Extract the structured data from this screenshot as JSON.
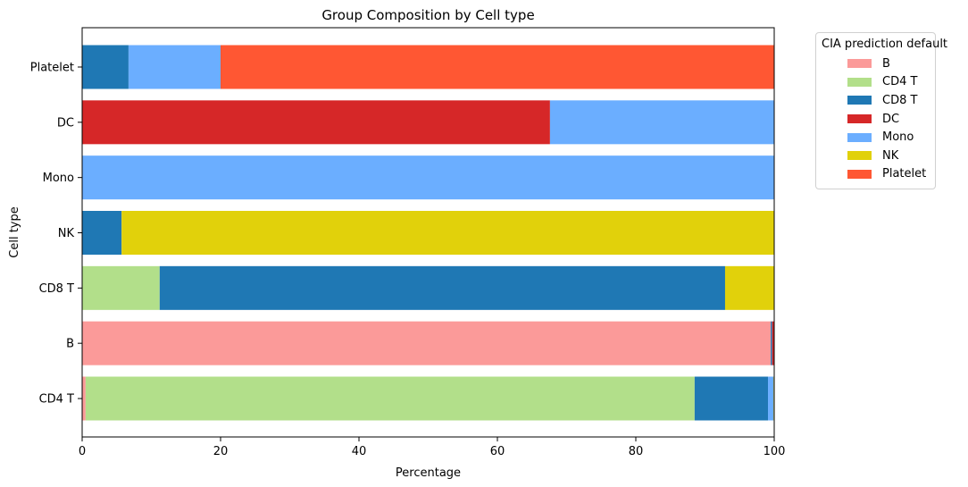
{
  "chart_data": {
    "type": "bar",
    "orientation": "horizontal",
    "stacked": true,
    "title": "Group Composition by Cell type",
    "xlabel": "Percentage",
    "ylabel": "Cell type",
    "xlim": [
      0,
      100
    ],
    "xticks": [
      "0",
      "20",
      "40",
      "60",
      "80",
      "100"
    ],
    "categories": [
      "CD4 T",
      "B",
      "CD8 T",
      "NK",
      "Mono",
      "DC",
      "Platelet"
    ],
    "legend_title": "CIA prediction default",
    "legend_position": "outside-upper-right",
    "grid": false,
    "series": [
      {
        "name": "B",
        "color": "#fb9a99",
        "values": [
          0.5,
          99.5,
          0,
          0,
          0,
          0,
          0
        ]
      },
      {
        "name": "CD4 T",
        "color": "#b2df8a",
        "values": [
          88.0,
          0,
          11.2,
          0,
          0,
          0,
          0
        ]
      },
      {
        "name": "CD8 T",
        "color": "#1f78b4",
        "values": [
          10.6,
          0.2,
          81.7,
          5.7,
          0,
          0,
          6.7
        ]
      },
      {
        "name": "DC",
        "color": "#d62728",
        "values": [
          0,
          0.3,
          0,
          0,
          0,
          67.6,
          0
        ]
      },
      {
        "name": "Mono",
        "color": "#6baeff",
        "values": [
          0.8,
          0,
          0,
          0,
          100,
          32.4,
          13.3
        ]
      },
      {
        "name": "NK",
        "color": "#e1d10b",
        "values": [
          0.1,
          0,
          7.1,
          94.3,
          0,
          0,
          0
        ]
      },
      {
        "name": "Platelet",
        "color": "#ff5733",
        "values": [
          0,
          0,
          0,
          0,
          0,
          0,
          80.0
        ]
      }
    ]
  }
}
